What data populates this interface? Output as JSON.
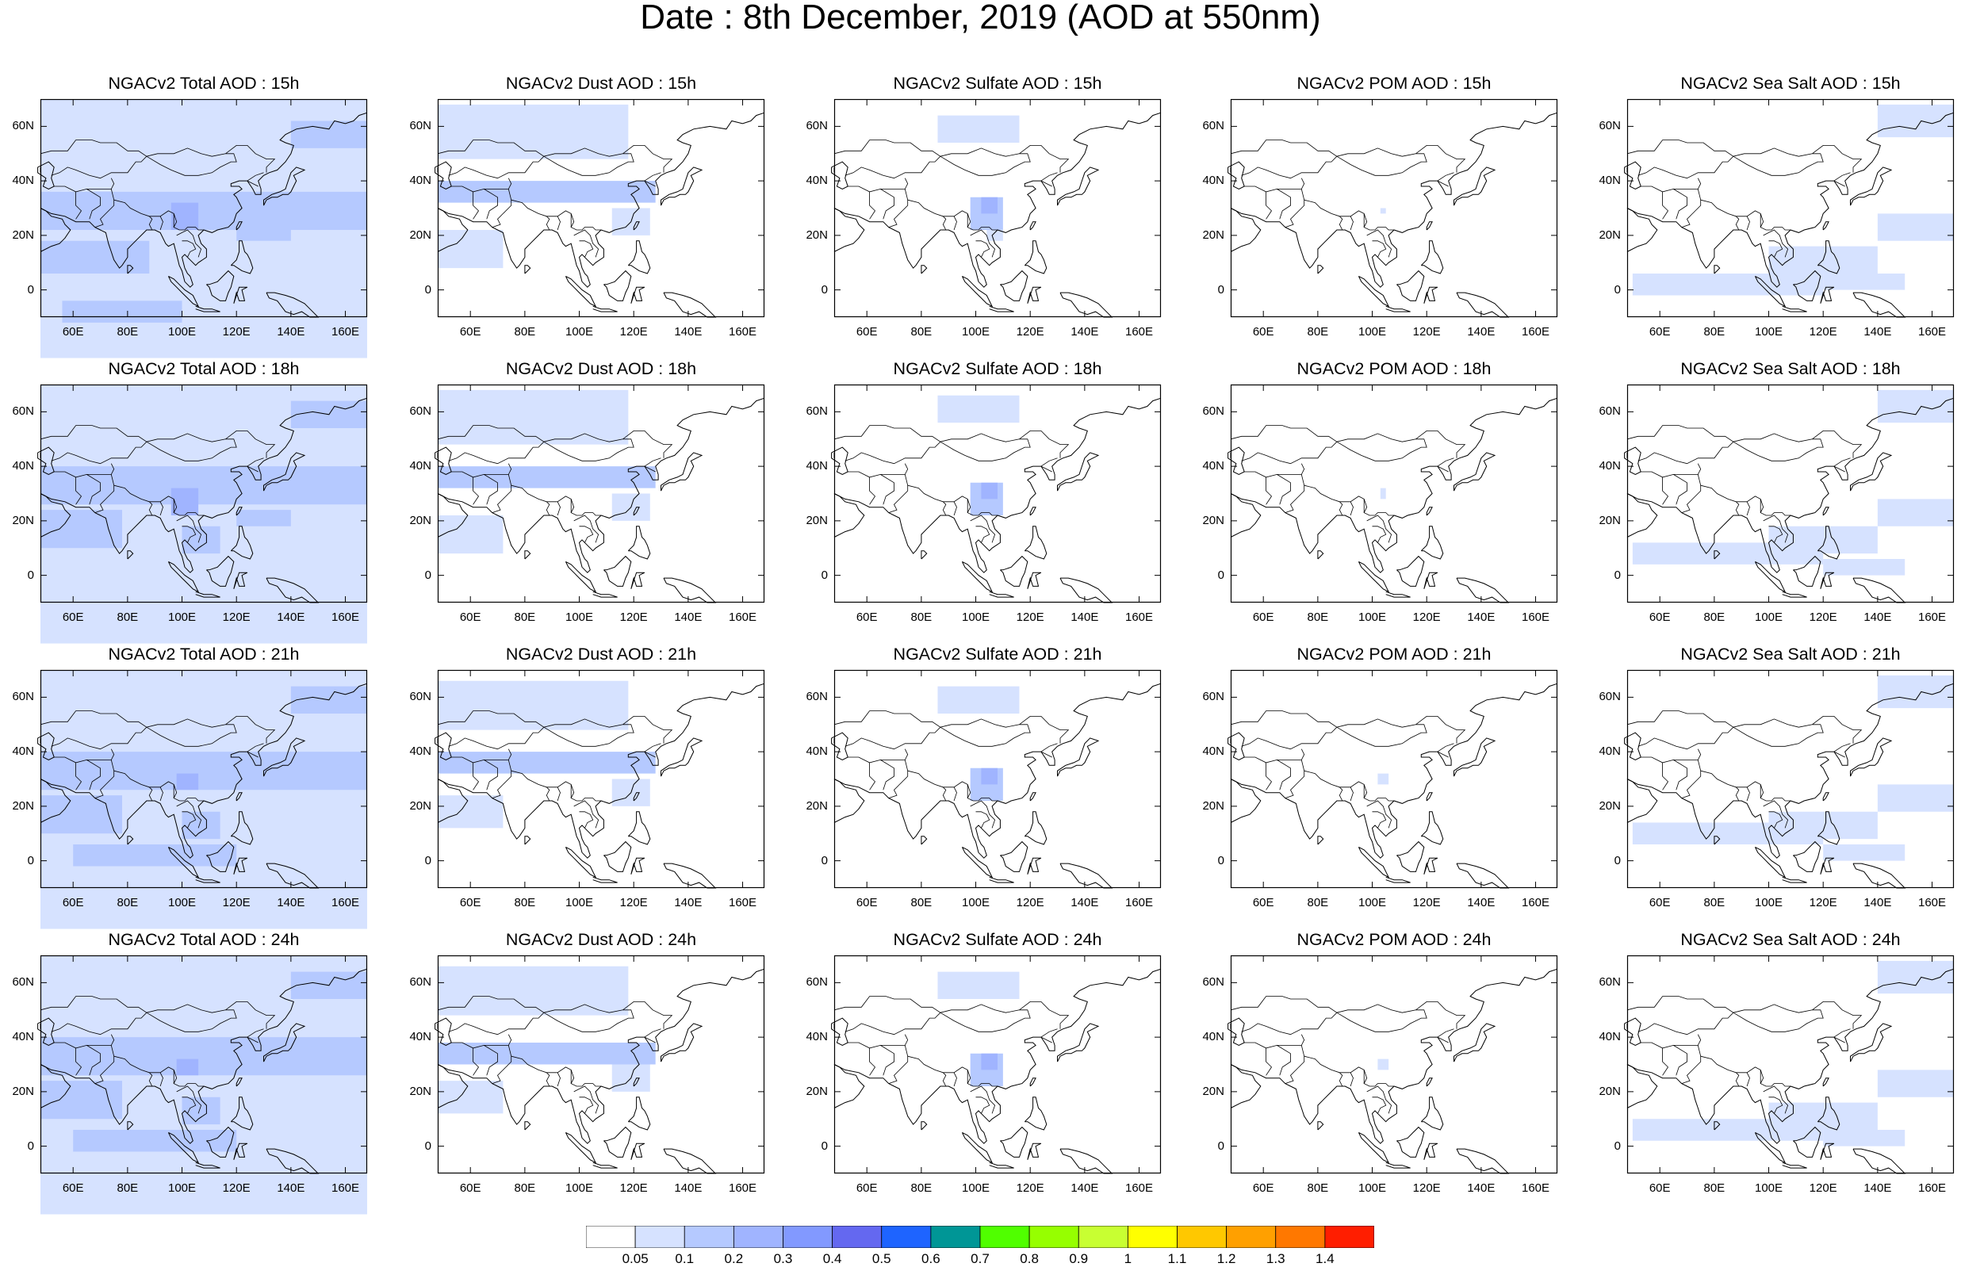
{
  "title": "Date : 8th December, 2019 (AOD at 550nm)",
  "columns": [
    "Total",
    "Dust",
    "Sulfate",
    "POM",
    "SeaSalt"
  ],
  "hours": [
    "15h",
    "18h",
    "21h",
    "24h"
  ],
  "panel_titles": [
    [
      "NGACv2 Total AOD : 15h",
      "NGACv2 Dust AOD : 15h",
      "NGACv2 Sulfate AOD : 15h",
      "NGACv2 POM AOD : 15h",
      "NGACv2 Sea Salt AOD : 15h"
    ],
    [
      "NGACv2 Total AOD : 18h",
      "NGACv2 Dust AOD : 18h",
      "NGACv2 Sulfate AOD : 18h",
      "NGACv2 POM AOD : 18h",
      "NGACv2 Sea Salt AOD : 18h"
    ],
    [
      "NGACv2 Total AOD : 21h",
      "NGACv2 Dust AOD : 21h",
      "NGACv2 Sulfate AOD : 21h",
      "NGACv2 POM AOD : 21h",
      "NGACv2 Sea Salt AOD : 21h"
    ],
    [
      "NGACv2 Total AOD : 24h",
      "NGACv2 Dust AOD : 24h",
      "NGACv2 Sulfate AOD : 24h",
      "NGACv2 POM AOD : 24h",
      "NGACv2 Sea Salt  AOD : 24h"
    ]
  ],
  "x_ticks": [
    "60E",
    "80E",
    "100E",
    "120E",
    "140E",
    "160E"
  ],
  "x_tick_values": [
    60,
    80,
    100,
    120,
    140,
    160
  ],
  "y_ticks": [
    "60N",
    "40N",
    "20N",
    "0"
  ],
  "y_tick_values": [
    60,
    40,
    20,
    0
  ],
  "lon_range": [
    48,
    168
  ],
  "lat_range": [
    -10,
    70
  ],
  "colorbar": {
    "labels": [
      "0.05",
      "0.1",
      "0.2",
      "0.3",
      "0.4",
      "0.5",
      "0.6",
      "0.7",
      "0.8",
      "0.9",
      "1",
      "1.1",
      "1.2",
      "1.3",
      "1.4"
    ],
    "colors": [
      "#ffffff",
      "#d6e2ff",
      "#b5c9ff",
      "#a0b4ff",
      "#8299ff",
      "#6468f0",
      "#1e64ff",
      "#009696",
      "#50ff00",
      "#96ff00",
      "#c8ff32",
      "#ffff00",
      "#ffc800",
      "#ffa000",
      "#ff7800",
      "#ff1e00"
    ]
  },
  "colors": {
    "very_light": "#d6e2ff",
    "light": "#b5c9ff",
    "medium": "#a0b4ff"
  }
}
